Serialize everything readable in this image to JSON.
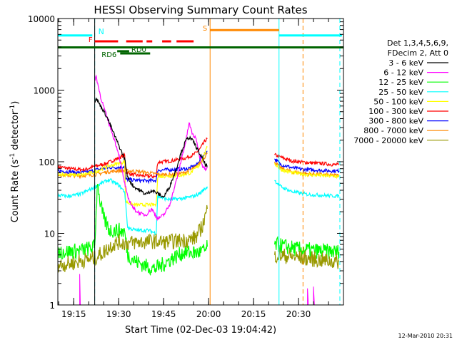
{
  "chart_data": {
    "type": "line",
    "title": "HESSI Observing Summary Count Rates",
    "xlabel": "Start Time (02-Dec-03 19:04:42)",
    "ylabel_main": "Count Rate (s",
    "ylabel_sup1": "-1",
    "ylabel_mid": " detector",
    "ylabel_sup2": "-1",
    "ylabel_end": ")",
    "y_scale": "log",
    "ylim": [
      1,
      10000
    ],
    "xlim_minutes": [
      1149.7,
      1245.0
    ],
    "x_ticks": [
      {
        "m": 1155,
        "label": "19:15"
      },
      {
        "m": 1170,
        "label": "19:30"
      },
      {
        "m": 1185,
        "label": "19:45"
      },
      {
        "m": 1200,
        "label": "20:00"
      },
      {
        "m": 1215,
        "label": "20:15"
      },
      {
        "m": 1230,
        "label": "20:30"
      }
    ],
    "y_ticks": [
      {
        "v": 1,
        "label": "1"
      },
      {
        "v": 10,
        "label": "10"
      },
      {
        "v": 100,
        "label": "100"
      },
      {
        "v": 1000,
        "label": "1000"
      },
      {
        "v": 10000,
        "label": "10000"
      }
    ],
    "legend": {
      "placement": "right",
      "header": [
        "Det 1,3,4,5,6,9,",
        "FDecim 2, Att 0"
      ],
      "entries": [
        {
          "label": "3 - 6 keV",
          "color": "#000000"
        },
        {
          "label": "6 - 12 keV",
          "color": "#ff00ff"
        },
        {
          "label": "12 - 25 keV",
          "color": "#00ff00"
        },
        {
          "label": "25 - 50 keV",
          "color": "#00ffff"
        },
        {
          "label": "50 - 100 keV",
          "color": "#ffff00"
        },
        {
          "label": "100 - 300 keV",
          "color": "#ff0000"
        },
        {
          "label": "300 - 800 keV",
          "color": "#0000ff"
        },
        {
          "label": "800 - 7000 keV",
          "color": "#ff8800"
        },
        {
          "label": "7000 - 20000 keV",
          "color": "#999900"
        }
      ]
    },
    "series": [
      {
        "color": "#ff0000",
        "points": [
          [
            1149.7,
            85
          ],
          [
            1154,
            80
          ],
          [
            1156,
            78
          ],
          [
            1159,
            78
          ],
          [
            1161,
            84
          ],
          [
            1166,
            95
          ],
          [
            1171,
            118
          ],
          [
            1172,
            124
          ],
          [
            1172.3,
            72
          ],
          [
            1175,
            65
          ],
          [
            1180,
            63
          ],
          [
            1182.5,
            62
          ],
          [
            1183,
            98
          ],
          [
            1187,
            102
          ],
          [
            1192,
            112
          ],
          [
            1195,
            125
          ],
          [
            1197,
            148
          ],
          [
            1199,
            200
          ],
          [
            1199.6,
            210
          ]
        ]
      },
      {
        "color": "#ff0000",
        "points": [
          [
            1222,
            125
          ],
          [
            1225,
            112
          ],
          [
            1228,
            102
          ],
          [
            1232,
            98
          ],
          [
            1236,
            95
          ],
          [
            1239,
            94
          ],
          [
            1242,
            91
          ],
          [
            1243.5,
            90
          ]
        ]
      },
      {
        "color": "#0000ff",
        "points": [
          [
            1149.7,
            75
          ],
          [
            1154,
            72
          ],
          [
            1157,
            70
          ],
          [
            1160,
            72
          ],
          [
            1163,
            78
          ],
          [
            1167,
            83
          ],
          [
            1171,
            84
          ],
          [
            1172,
            86
          ],
          [
            1172.3,
            57
          ],
          [
            1176,
            55
          ],
          [
            1180,
            54
          ],
          [
            1182.5,
            55
          ],
          [
            1183,
            76
          ],
          [
            1188,
            78
          ],
          [
            1193,
            80
          ],
          [
            1196,
            90
          ],
          [
            1198,
            120
          ],
          [
            1199.6,
            140
          ]
        ]
      },
      {
        "color": "#0000ff",
        "points": [
          [
            1222,
            110
          ],
          [
            1224,
            92
          ],
          [
            1228,
            82
          ],
          [
            1232,
            78
          ],
          [
            1237,
            76
          ],
          [
            1240,
            75
          ],
          [
            1243.5,
            74
          ]
        ]
      },
      {
        "color": "#ff8800",
        "points": [
          [
            1149.7,
            66
          ],
          [
            1154,
            64
          ],
          [
            1158,
            64
          ],
          [
            1162,
            66
          ],
          [
            1166,
            72
          ],
          [
            1170,
            75
          ],
          [
            1175,
            74
          ],
          [
            1180,
            70
          ],
          [
            1184,
            66
          ],
          [
            1188,
            66
          ],
          [
            1192,
            70
          ],
          [
            1196,
            85
          ],
          [
            1199.6,
            130
          ]
        ]
      },
      {
        "color": "#ff8800",
        "points": [
          [
            1222,
            100
          ],
          [
            1224,
            82
          ],
          [
            1228,
            72
          ],
          [
            1233,
            68
          ],
          [
            1238,
            66
          ],
          [
            1243.5,
            64
          ]
        ]
      },
      {
        "color": "#ffff00",
        "points": [
          [
            1149.7,
            68
          ],
          [
            1154,
            65
          ],
          [
            1158,
            66
          ],
          [
            1162,
            72
          ],
          [
            1166,
            85
          ],
          [
            1170,
            95
          ],
          [
            1172,
            100
          ],
          [
            1172.3,
            28
          ],
          [
            1175,
            25
          ],
          [
            1180,
            25
          ],
          [
            1182.5,
            25
          ],
          [
            1183,
            62
          ],
          [
            1187,
            63
          ],
          [
            1191,
            65
          ],
          [
            1194,
            70
          ],
          [
            1197,
            90
          ],
          [
            1199.6,
            160
          ]
        ]
      },
      {
        "color": "#ffff00",
        "points": [
          [
            1222,
            95
          ],
          [
            1224,
            78
          ],
          [
            1228,
            70
          ],
          [
            1233,
            66
          ],
          [
            1238,
            64
          ],
          [
            1243.5,
            62
          ]
        ]
      },
      {
        "color": "#00ffff",
        "points": [
          [
            1149.7,
            34
          ],
          [
            1153,
            33
          ],
          [
            1157,
            35
          ],
          [
            1161,
            42
          ],
          [
            1165,
            52
          ],
          [
            1167,
            56
          ],
          [
            1170,
            47
          ],
          [
            1172,
            38
          ],
          [
            1173,
            12
          ],
          [
            1176,
            11
          ],
          [
            1180,
            11
          ],
          [
            1182.5,
            10
          ],
          [
            1183,
            33
          ],
          [
            1186,
            30
          ],
          [
            1189,
            30
          ],
          [
            1192,
            31
          ],
          [
            1195,
            33
          ],
          [
            1197,
            36
          ],
          [
            1199.6,
            45
          ]
        ]
      },
      {
        "color": "#00ffff",
        "points": [
          [
            1222,
            55
          ],
          [
            1224,
            45
          ],
          [
            1228,
            38
          ],
          [
            1233,
            35
          ],
          [
            1238,
            34
          ],
          [
            1243.5,
            33
          ]
        ]
      },
      {
        "color": "#00ff00",
        "points": [
          [
            1149.7,
            5.5
          ],
          [
            1154,
            5.6
          ],
          [
            1158,
            5.8
          ],
          [
            1162,
            6.5
          ],
          [
            1163,
            60
          ],
          [
            1163.5,
            32
          ],
          [
            1165,
            16
          ],
          [
            1167,
            11
          ],
          [
            1170,
            11
          ],
          [
            1172,
            10.5
          ],
          [
            1173,
            5
          ],
          [
            1176,
            4
          ],
          [
            1179,
            3.5
          ],
          [
            1182,
            3.2
          ],
          [
            1184,
            3.5
          ],
          [
            1188,
            4.5
          ],
          [
            1192,
            5.5
          ],
          [
            1196,
            5.3
          ],
          [
            1199,
            5.8
          ],
          [
            1199.6,
            6.5
          ]
        ]
      },
      {
        "color": "#00ff00",
        "points": [
          [
            1222,
            7
          ],
          [
            1226,
            6.5
          ],
          [
            1230,
            6
          ],
          [
            1234,
            5.8
          ],
          [
            1238,
            5.6
          ],
          [
            1243.5,
            5.5
          ]
        ]
      },
      {
        "color": "#999900",
        "points": [
          [
            1149.7,
            3.6
          ],
          [
            1154,
            3.8
          ],
          [
            1158,
            4.2
          ],
          [
            1162,
            4.5
          ],
          [
            1165,
            5.5
          ],
          [
            1168,
            7
          ],
          [
            1170,
            7.5
          ],
          [
            1173,
            7.3
          ],
          [
            1176,
            7.5
          ],
          [
            1179,
            7.6
          ],
          [
            1182,
            7.8
          ],
          [
            1185,
            7.5
          ],
          [
            1188,
            7.7
          ],
          [
            1191,
            8
          ],
          [
            1194,
            8.2
          ],
          [
            1196,
            9
          ],
          [
            1198,
            13
          ],
          [
            1199.6,
            22
          ]
        ]
      },
      {
        "color": "#999900",
        "points": [
          [
            1222,
            5
          ],
          [
            1226,
            4.8
          ],
          [
            1230,
            4.6
          ],
          [
            1234,
            4.4
          ],
          [
            1238,
            4.2
          ],
          [
            1243.5,
            4
          ]
        ]
      },
      {
        "color": "#ff00ff",
        "points": [
          [
            1162,
            1350
          ],
          [
            1162.5,
            1550
          ],
          [
            1164,
            800
          ],
          [
            1166,
            430
          ],
          [
            1168,
            240
          ],
          [
            1170,
            130
          ],
          [
            1171,
            80
          ],
          [
            1172,
            50
          ],
          [
            1173,
            32
          ],
          [
            1175,
            22
          ],
          [
            1177,
            19
          ],
          [
            1179,
            18
          ],
          [
            1181,
            22
          ],
          [
            1183,
            16
          ],
          [
            1185,
            18
          ],
          [
            1187,
            25
          ],
          [
            1189,
            50
          ],
          [
            1191,
            110
          ],
          [
            1192.5,
            200
          ],
          [
            1193.5,
            350
          ],
          [
            1194.5,
            250
          ],
          [
            1196,
            200
          ],
          [
            1197,
            120
          ],
          [
            1198,
            88
          ],
          [
            1199,
            80
          ],
          [
            1199.6,
            85
          ]
        ]
      },
      {
        "color": "#000000",
        "points": [
          [
            1162,
            700
          ],
          [
            1162.5,
            760
          ],
          [
            1164,
            600
          ],
          [
            1166,
            430
          ],
          [
            1168,
            270
          ],
          [
            1170,
            170
          ],
          [
            1172,
            110
          ],
          [
            1173,
            60
          ],
          [
            1175,
            45
          ],
          [
            1177,
            40
          ],
          [
            1179,
            35
          ],
          [
            1181,
            40
          ],
          [
            1183,
            36
          ],
          [
            1185,
            32
          ],
          [
            1187,
            45
          ],
          [
            1189,
            75
          ],
          [
            1191,
            140
          ],
          [
            1192.5,
            200
          ],
          [
            1193.5,
            220
          ],
          [
            1195,
            190
          ],
          [
            1197,
            130
          ],
          [
            1198,
            110
          ],
          [
            1199,
            90
          ],
          [
            1199.6,
            88
          ]
        ]
      }
    ],
    "vlines": [
      {
        "m": 1162,
        "color": "#00ffff",
        "dash": true,
        "label": "N"
      },
      {
        "m": 1162,
        "color": "#000000",
        "dash": false,
        "label": ""
      },
      {
        "m": 1200.5,
        "color": "#ff8800",
        "dash": false,
        "label": ""
      },
      {
        "m": 1223.5,
        "color": "#00ffff",
        "dash": false,
        "label": ""
      },
      {
        "m": 1231.5,
        "color": "#ff8800",
        "dash": true,
        "label": ""
      },
      {
        "m": 1243.8,
        "color": "#00ffff",
        "dash": true,
        "label": ""
      }
    ],
    "bars": [
      {
        "label": "",
        "color": "#00ffff",
        "y": 5800,
        "segments": [
          [
            1149.7,
            1161.2
          ],
          [
            1223.5,
            1244.5
          ]
        ]
      },
      {
        "label": "S",
        "color": "#ff8800",
        "y": 6900,
        "segments": [
          [
            1200.5,
            1223.5
          ]
        ]
      },
      {
        "label": "F",
        "color": "#ff0000",
        "y": 4800,
        "segments": [
          [
            1162,
            1169.8
          ],
          [
            1172.5,
            1178
          ],
          [
            1179.3,
            1181.2
          ],
          [
            1184.5,
            1187.5
          ],
          [
            1189.3,
            1195
          ]
        ]
      },
      {
        "label": "",
        "color": "#006400",
        "y": 3950,
        "segments": [
          [
            1149.7,
            1245
          ]
        ]
      },
      {
        "label": "RD0",
        "color": "#006400",
        "y": 3500,
        "segments": [
          [
            1169.5,
            1173.5
          ]
        ]
      },
      {
        "label": "RD6",
        "color": "#006400",
        "y": 3250,
        "segments": [
          [
            1170.5,
            1180.5
          ]
        ]
      }
    ],
    "pre_lines": [
      {
        "color": "#ff00ff",
        "points": [
          [
            1157,
            1
          ],
          [
            1157,
            2.7
          ],
          [
            1157.2,
            1
          ]
        ]
      },
      {
        "color": "#ff00ff",
        "points": [
          [
            1233,
            1
          ],
          [
            1233,
            1.7
          ],
          [
            1233.3,
            1
          ]
        ]
      },
      {
        "color": "#ff00ff",
        "points": [
          [
            1235,
            1
          ],
          [
            1235,
            1.8
          ],
          [
            1235.3,
            1
          ]
        ]
      }
    ],
    "footer_date": "12-Mar-2010 20:31"
  }
}
